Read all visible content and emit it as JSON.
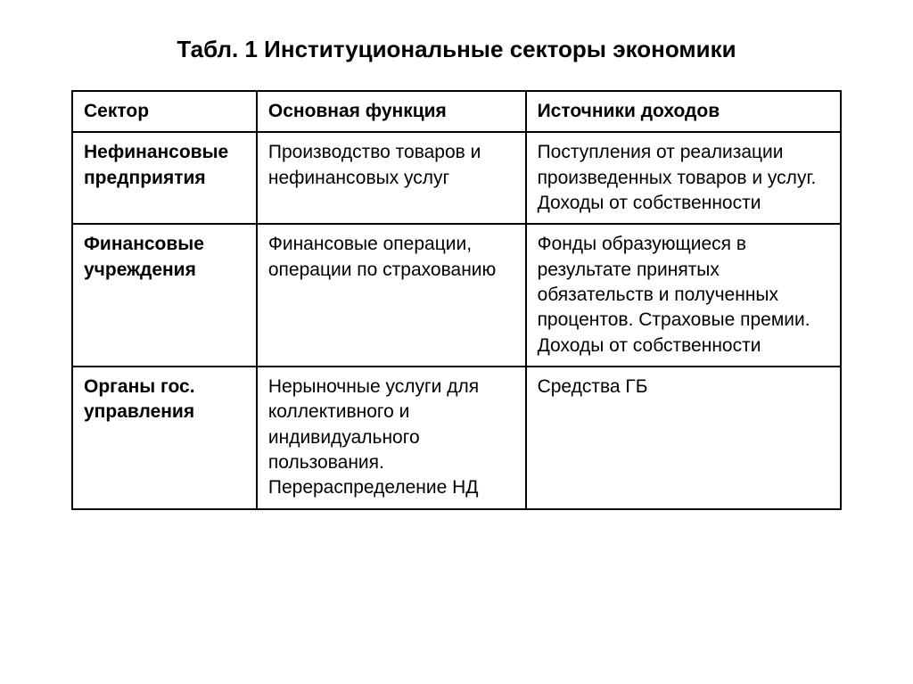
{
  "title": "Табл. 1 Институциональные секторы экономики",
  "table": {
    "columns": [
      "Сектор",
      "Основная функция",
      "Источники доходов"
    ],
    "rows": [
      {
        "sector": "Нефинансовые предприятия",
        "function": "Производство товаров и нефинансовых услуг",
        "income": "Поступления от реализации произведенных товаров и услуг. Доходы от собственности"
      },
      {
        "sector": "Финансовые учреждения",
        "function": "Финансовые операции, операции по страхованию",
        "income": "Фонды образующиеся в результате принятых обязательств и полученных процентов. Страховые премии. Доходы от собственности"
      },
      {
        "sector": "Органы гос. управления",
        "function": "Нерыночные услуги для коллективного и индивидуального пользования. Перераспределение НД",
        "income": "Средства ГБ"
      }
    ],
    "column_widths": [
      "24%",
      "35%",
      "41%"
    ],
    "border_color": "#000000",
    "border_width": 2,
    "background_color": "#ffffff",
    "text_color": "#000000",
    "header_fontsize": 21,
    "cell_fontsize": 21,
    "title_fontsize": 26
  }
}
